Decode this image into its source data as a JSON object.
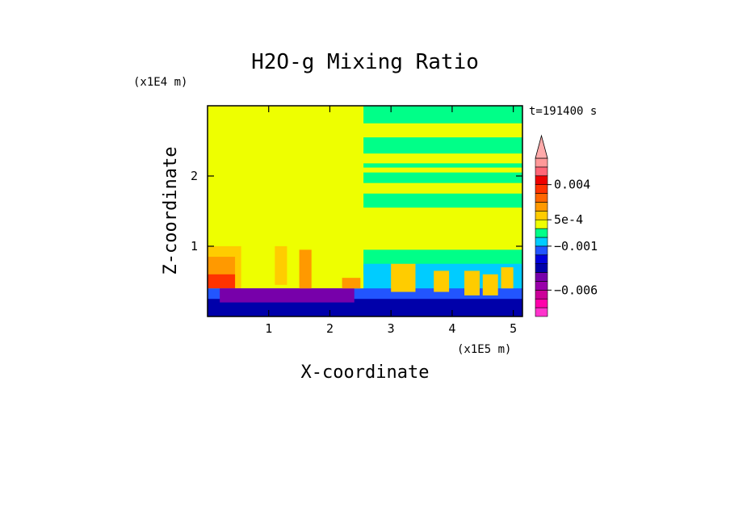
{
  "chart_data": {
    "type": "heatmap",
    "title": "H2O-g Mixing Ratio",
    "xlabel": "X-coordinate",
    "ylabel": "Z-coordinate",
    "x_scale_label": "(x1E5 m)",
    "y_scale_label": "(x1E4 m)",
    "time_label": "t=191400 s",
    "xlim": [
      0,
      5.15
    ],
    "ylim": [
      0,
      3.0
    ],
    "x_ticks": [
      1,
      2,
      3,
      4,
      5
    ],
    "y_ticks": [
      1,
      2
    ],
    "x_tick_labels": [
      "1",
      "2",
      "3",
      "4",
      "5"
    ],
    "y_tick_labels": [
      "1",
      "2"
    ],
    "colorbar": {
      "labels": [
        "0.004",
        "5e-4",
        "−0.001",
        "−0.006"
      ],
      "label_values": [
        0.004,
        0.0005,
        -0.001,
        -0.006
      ],
      "vmin": -0.009,
      "vmax": 0.007,
      "bins": [
        {
          "from": -0.009,
          "to": -0.008,
          "color": "#ff33cc"
        },
        {
          "from": -0.008,
          "to": -0.007,
          "color": "#ff00aa"
        },
        {
          "from": -0.007,
          "to": -0.006,
          "color": "#cc0099"
        },
        {
          "from": -0.006,
          "to": -0.005,
          "color": "#9900aa"
        },
        {
          "from": -0.005,
          "to": -0.004,
          "color": "#7700aa"
        },
        {
          "from": -0.004,
          "to": -0.003,
          "color": "#0000aa"
        },
        {
          "from": -0.003,
          "to": -0.002,
          "color": "#0000dd"
        },
        {
          "from": -0.002,
          "to": -0.001,
          "color": "#2255ff"
        },
        {
          "from": -0.001,
          "to": -0.0005,
          "color": "#00ccff"
        },
        {
          "from": -0.0005,
          "to": 0,
          "color": "#00ff88"
        },
        {
          "from": 0,
          "to": 0.0005,
          "color": "#eeff00"
        },
        {
          "from": 0.0005,
          "to": 0.001,
          "color": "#ffcc00"
        },
        {
          "from": 0.001,
          "to": 0.002,
          "color": "#ff9900"
        },
        {
          "from": 0.002,
          "to": 0.003,
          "color": "#ff6600"
        },
        {
          "from": 0.003,
          "to": 0.004,
          "color": "#ff3300"
        },
        {
          "from": 0.004,
          "to": 0.005,
          "color": "#ee0000"
        },
        {
          "from": 0.005,
          "to": 0.006,
          "color": "#ff6677"
        },
        {
          "from": 0.006,
          "to": 0.007,
          "color": "#ff9999"
        }
      ],
      "extend_above_color": "#ffaaaa"
    },
    "regions": [
      {
        "x": [
          0,
          5.15
        ],
        "z": [
          0,
          3.0
        ],
        "value": 0.0002
      },
      {
        "x": [
          2.55,
          5.15
        ],
        "z": [
          2.75,
          3.0
        ],
        "value": -0.0003
      },
      {
        "x": [
          2.55,
          5.15
        ],
        "z": [
          2.32,
          2.55
        ],
        "value": -0.0003
      },
      {
        "x": [
          2.55,
          5.15
        ],
        "z": [
          2.12,
          2.18
        ],
        "value": -0.0003
      },
      {
        "x": [
          2.55,
          5.15
        ],
        "z": [
          1.9,
          2.05
        ],
        "value": -0.0003
      },
      {
        "x": [
          2.55,
          5.15
        ],
        "z": [
          1.55,
          1.75
        ],
        "value": -0.0003
      },
      {
        "x": [
          2.55,
          5.15
        ],
        "z": [
          0.6,
          0.95
        ],
        "value": -0.0003
      },
      {
        "x": [
          2.55,
          5.15
        ],
        "z": [
          0.3,
          0.75
        ],
        "value": -0.0008
      },
      {
        "x": [
          0,
          0.55
        ],
        "z": [
          0.35,
          1.0
        ],
        "value": 0.0008
      },
      {
        "x": [
          0,
          0.45
        ],
        "z": [
          0.4,
          0.85
        ],
        "value": 0.0015
      },
      {
        "x": [
          0,
          0.45
        ],
        "z": [
          0.4,
          0.6
        ],
        "value": 0.0035
      },
      {
        "x": [
          0,
          5.15
        ],
        "z": [
          0.15,
          0.4
        ],
        "value": -0.0015
      },
      {
        "x": [
          0,
          5.15
        ],
        "z": [
          0,
          0.25
        ],
        "value": -0.0035
      },
      {
        "x": [
          0.2,
          2.4
        ],
        "z": [
          0.2,
          0.4
        ],
        "value": -0.0045
      },
      {
        "x": [
          1.1,
          1.3
        ],
        "z": [
          0.45,
          1.0
        ],
        "value": 0.0008
      },
      {
        "x": [
          1.5,
          1.7
        ],
        "z": [
          0.4,
          0.95
        ],
        "value": 0.0015
      },
      {
        "x": [
          2.2,
          2.5
        ],
        "z": [
          0.4,
          0.55
        ],
        "value": 0.0015
      },
      {
        "x": [
          3.0,
          3.4
        ],
        "z": [
          0.35,
          0.75
        ],
        "value": 0.0008
      },
      {
        "x": [
          3.7,
          3.95
        ],
        "z": [
          0.35,
          0.65
        ],
        "value": 0.0008
      },
      {
        "x": [
          4.2,
          4.45
        ],
        "z": [
          0.3,
          0.65
        ],
        "value": 0.0008
      },
      {
        "x": [
          4.5,
          4.75
        ],
        "z": [
          0.3,
          0.6
        ],
        "value": 0.0008
      },
      {
        "x": [
          4.8,
          5.0
        ],
        "z": [
          0.4,
          0.7
        ],
        "value": 0.0008
      }
    ]
  }
}
